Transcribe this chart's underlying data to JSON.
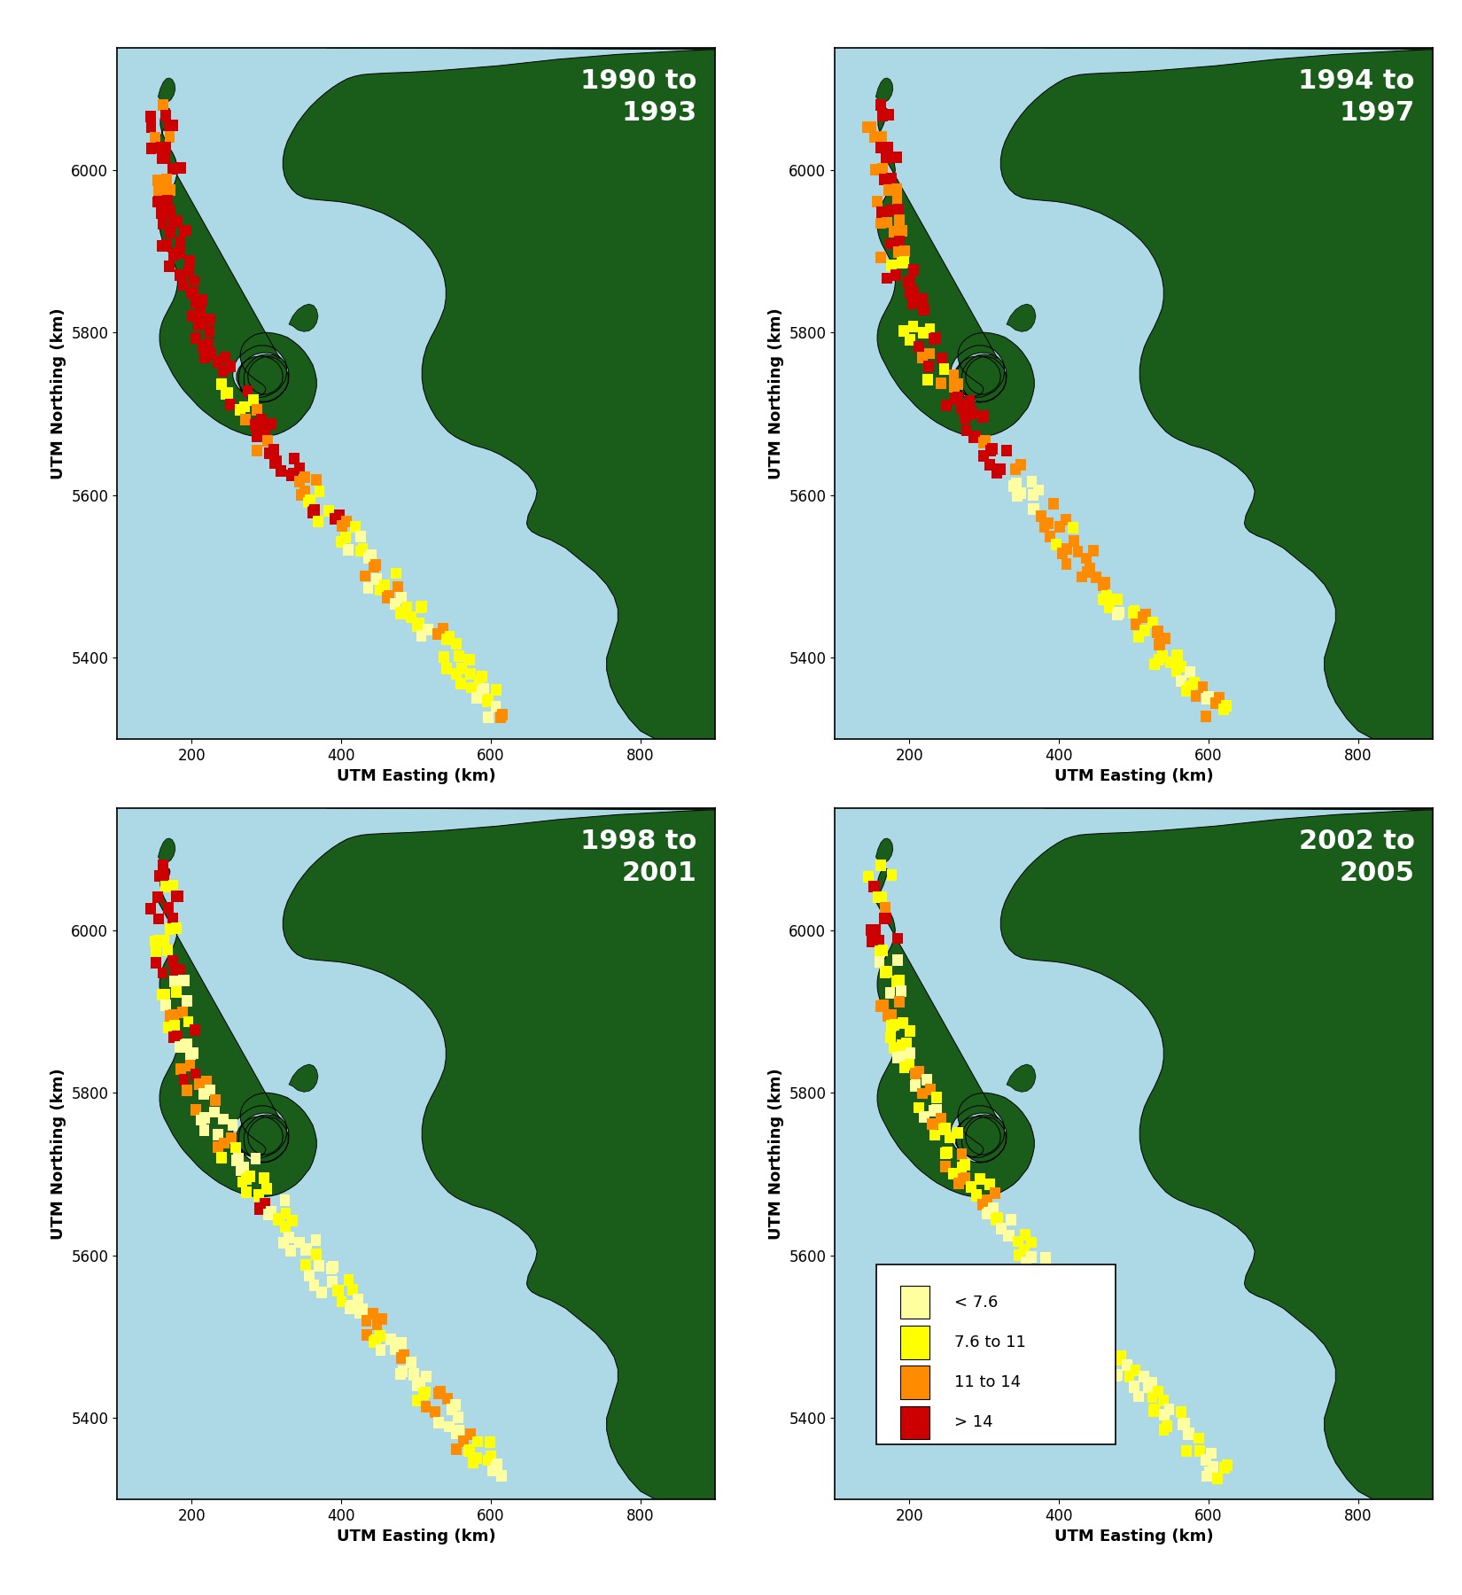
{
  "panels": [
    {
      "title": "1990 to\n1993",
      "period": "1990-1993"
    },
    {
      "title": "1994 to\n1997",
      "period": "1994-1997"
    },
    {
      "title": "1998 to\n2001",
      "period": "1998-2001"
    },
    {
      "title": "2002 to\n2005",
      "period": "2002-2005"
    }
  ],
  "xlim": [
    100,
    900
  ],
  "ylim": [
    5300,
    6150
  ],
  "xticks": [
    200,
    400,
    600,
    800
  ],
  "yticks": [
    5400,
    5600,
    5800,
    6000
  ],
  "xlabel": "UTM Easting (km)",
  "ylabel": "UTM Northing (km)",
  "ocean_color": "#ADD8E6",
  "land_color": "#1a5c1a",
  "land_border_color": "#000000",
  "title_color": "white",
  "title_fontsize": 22,
  "legend_labels": [
    "< 7.6",
    "7.6 to 11",
    "11 to 14",
    "> 14"
  ],
  "legend_colors": [
    "#FFFFA0",
    "#FFFF00",
    "#FF8C00",
    "#CC0000"
  ],
  "cpue_colors": {
    "very_low": "#FFFFA0",
    "low": "#FFFF00",
    "medium": "#FF8C00",
    "high": "#CC0000"
  },
  "mainland": [
    [
      380,
      6150
    ],
    [
      900,
      6150
    ],
    [
      900,
      5300
    ],
    [
      820,
      5300
    ],
    [
      800,
      5310
    ],
    [
      785,
      5325
    ],
    [
      770,
      5345
    ],
    [
      760,
      5365
    ],
    [
      755,
      5385
    ],
    [
      755,
      5400
    ],
    [
      760,
      5415
    ],
    [
      765,
      5430
    ],
    [
      770,
      5445
    ],
    [
      770,
      5460
    ],
    [
      765,
      5475
    ],
    [
      755,
      5490
    ],
    [
      740,
      5505
    ],
    [
      720,
      5520
    ],
    [
      700,
      5535
    ],
    [
      680,
      5545
    ],
    [
      665,
      5550
    ],
    [
      655,
      5555
    ],
    [
      650,
      5560
    ],
    [
      648,
      5565
    ],
    [
      650,
      5575
    ],
    [
      655,
      5585
    ],
    [
      660,
      5595
    ],
    [
      662,
      5605
    ],
    [
      658,
      5615
    ],
    [
      650,
      5625
    ],
    [
      638,
      5635
    ],
    [
      625,
      5643
    ],
    [
      612,
      5650
    ],
    [
      600,
      5655
    ],
    [
      590,
      5658
    ],
    [
      582,
      5660
    ],
    [
      575,
      5662
    ],
    [
      568,
      5665
    ],
    [
      560,
      5668
    ],
    [
      552,
      5672
    ],
    [
      543,
      5678
    ],
    [
      535,
      5686
    ],
    [
      527,
      5695
    ],
    [
      520,
      5706
    ],
    [
      514,
      5718
    ],
    [
      510,
      5730
    ],
    [
      508,
      5743
    ],
    [
      508,
      5756
    ],
    [
      510,
      5769
    ],
    [
      514,
      5782
    ],
    [
      520,
      5794
    ],
    [
      527,
      5806
    ],
    [
      533,
      5818
    ],
    [
      538,
      5830
    ],
    [
      540,
      5842
    ],
    [
      540,
      5854
    ],
    [
      538,
      5866
    ],
    [
      534,
      5878
    ],
    [
      528,
      5890
    ],
    [
      520,
      5902
    ],
    [
      510,
      5913
    ],
    [
      498,
      5923
    ],
    [
      485,
      5932
    ],
    [
      470,
      5940
    ],
    [
      455,
      5947
    ],
    [
      440,
      5952
    ],
    [
      425,
      5956
    ],
    [
      410,
      5959
    ],
    [
      396,
      5961
    ],
    [
      383,
      5962
    ],
    [
      371,
      5963
    ],
    [
      360,
      5964
    ],
    [
      350,
      5966
    ],
    [
      341,
      5970
    ],
    [
      334,
      5976
    ],
    [
      328,
      5984
    ],
    [
      324,
      5993
    ],
    [
      322,
      6003
    ],
    [
      322,
      6013
    ],
    [
      324,
      6024
    ],
    [
      328,
      6035
    ],
    [
      334,
      6046
    ],
    [
      341,
      6057
    ],
    [
      349,
      6067
    ],
    [
      358,
      6077
    ],
    [
      368,
      6086
    ],
    [
      378,
      6094
    ],
    [
      388,
      6101
    ],
    [
      398,
      6107
    ],
    [
      408,
      6112
    ],
    [
      418,
      6115
    ],
    [
      428,
      6117
    ],
    [
      440,
      6118
    ],
    [
      460,
      6119
    ],
    [
      490,
      6120
    ],
    [
      530,
      6122
    ],
    [
      570,
      6125
    ],
    [
      610,
      6128
    ],
    [
      650,
      6132
    ],
    [
      690,
      6136
    ],
    [
      730,
      6139
    ],
    [
      770,
      6142
    ],
    [
      810,
      6144
    ],
    [
      850,
      6146
    ],
    [
      900,
      6148
    ]
  ],
  "vancouver_island": [
    [
      155,
      6035
    ],
    [
      160,
      6045
    ],
    [
      165,
      6055
    ],
    [
      168,
      6063
    ],
    [
      170,
      6068
    ],
    [
      171,
      6072
    ],
    [
      170,
      6075
    ],
    [
      168,
      6076
    ],
    [
      165,
      6075
    ],
    [
      162,
      6072
    ],
    [
      160,
      6068
    ],
    [
      158,
      6062
    ],
    [
      158,
      6055
    ],
    [
      160,
      6047
    ],
    [
      163,
      6040
    ],
    [
      167,
      6033
    ],
    [
      171,
      6026
    ],
    [
      175,
      6020
    ],
    [
      178,
      6014
    ],
    [
      180,
      6007
    ],
    [
      181,
      6000
    ],
    [
      180,
      5993
    ],
    [
      178,
      5986
    ],
    [
      175,
      5979
    ],
    [
      171,
      5972
    ],
    [
      167,
      5965
    ],
    [
      163,
      5958
    ],
    [
      160,
      5951
    ],
    [
      158,
      5944
    ],
    [
      157,
      5937
    ],
    [
      157,
      5930
    ],
    [
      158,
      5923
    ],
    [
      160,
      5916
    ],
    [
      163,
      5909
    ],
    [
      167,
      5902
    ],
    [
      171,
      5895
    ],
    [
      175,
      5888
    ],
    [
      178,
      5881
    ],
    [
      180,
      5874
    ],
    [
      181,
      5867
    ],
    [
      181,
      5860
    ],
    [
      180,
      5853
    ],
    [
      178,
      5846
    ],
    [
      175,
      5839
    ],
    [
      171,
      5832
    ],
    [
      167,
      5825
    ],
    [
      163,
      5818
    ],
    [
      160,
      5811
    ],
    [
      158,
      5804
    ],
    [
      157,
      5797
    ],
    [
      157,
      5790
    ],
    [
      158,
      5783
    ],
    [
      160,
      5776
    ],
    [
      163,
      5769
    ],
    [
      167,
      5762
    ],
    [
      171,
      5755
    ],
    [
      175,
      5748
    ],
    [
      180,
      5741
    ],
    [
      185,
      5734
    ],
    [
      190,
      5728
    ],
    [
      196,
      5722
    ],
    [
      202,
      5716
    ],
    [
      208,
      5710
    ],
    [
      215,
      5704
    ],
    [
      222,
      5699
    ],
    [
      229,
      5694
    ],
    [
      237,
      5689
    ],
    [
      245,
      5685
    ],
    [
      253,
      5681
    ],
    [
      261,
      5678
    ],
    [
      270,
      5675
    ],
    [
      279,
      5673
    ],
    [
      288,
      5672
    ],
    [
      297,
      5672
    ],
    [
      306,
      5673
    ],
    [
      315,
      5675
    ],
    [
      323,
      5678
    ],
    [
      331,
      5682
    ],
    [
      339,
      5687
    ],
    [
      346,
      5693
    ],
    [
      352,
      5700
    ],
    [
      358,
      5707
    ],
    [
      362,
      5715
    ],
    [
      365,
      5724
    ],
    [
      367,
      5733
    ],
    [
      367,
      5742
    ],
    [
      365,
      5751
    ],
    [
      362,
      5760
    ],
    [
      357,
      5768
    ],
    [
      351,
      5776
    ],
    [
      344,
      5783
    ],
    [
      336,
      5789
    ],
    [
      328,
      5794
    ],
    [
      319,
      5797
    ],
    [
      310,
      5799
    ],
    [
      301,
      5800
    ],
    [
      292,
      5799
    ],
    [
      284,
      5797
    ],
    [
      277,
      5793
    ],
    [
      271,
      5788
    ],
    [
      267,
      5782
    ],
    [
      265,
      5775
    ],
    [
      265,
      5768
    ],
    [
      267,
      5761
    ],
    [
      271,
      5754
    ],
    [
      277,
      5748
    ],
    [
      284,
      5743
    ],
    [
      290,
      5739
    ],
    [
      295,
      5736
    ],
    [
      298,
      5733
    ],
    [
      299,
      5730
    ],
    [
      298,
      5727
    ],
    [
      295,
      5724
    ],
    [
      290,
      5722
    ],
    [
      284,
      5721
    ],
    [
      278,
      5722
    ],
    [
      272,
      5724
    ],
    [
      266,
      5728
    ],
    [
      261,
      5733
    ],
    [
      257,
      5739
    ],
    [
      255,
      5746
    ],
    [
      255,
      5753
    ],
    [
      257,
      5760
    ],
    [
      261,
      5767
    ],
    [
      267,
      5773
    ],
    [
      274,
      5778
    ],
    [
      282,
      5782
    ],
    [
      290,
      5784
    ],
    [
      299,
      5784
    ],
    [
      307,
      5782
    ],
    [
      314,
      5778
    ],
    [
      320,
      5772
    ],
    [
      325,
      5765
    ],
    [
      327,
      5757
    ],
    [
      327,
      5749
    ],
    [
      325,
      5741
    ],
    [
      320,
      5734
    ],
    [
      314,
      5728
    ],
    [
      306,
      5724
    ],
    [
      298,
      5721
    ],
    [
      290,
      5720
    ],
    [
      282,
      5721
    ],
    [
      275,
      5724
    ],
    [
      268,
      5729
    ],
    [
      263,
      5735
    ],
    [
      260,
      5742
    ],
    [
      260,
      5749
    ],
    [
      263,
      5756
    ],
    [
      268,
      5762
    ],
    [
      275,
      5767
    ],
    [
      283,
      5770
    ],
    [
      292,
      5771
    ],
    [
      300,
      5770
    ],
    [
      308,
      5767
    ],
    [
      315,
      5762
    ],
    [
      320,
      5755
    ],
    [
      322,
      5747
    ],
    [
      321,
      5739
    ],
    [
      316,
      5732
    ],
    [
      309,
      5727
    ],
    [
      301,
      5724
    ],
    [
      293,
      5724
    ],
    [
      286,
      5727
    ],
    [
      280,
      5732
    ],
    [
      276,
      5739
    ],
    [
      275,
      5747
    ],
    [
      277,
      5755
    ],
    [
      282,
      5762
    ],
    [
      289,
      5767
    ],
    [
      297,
      5770
    ],
    [
      305,
      5770
    ],
    [
      313,
      5768
    ],
    [
      320,
      5763
    ],
    [
      326,
      5756
    ],
    [
      329,
      5748
    ],
    [
      329,
      5739
    ],
    [
      326,
      5731
    ],
    [
      320,
      5724
    ],
    [
      312,
      5718
    ],
    [
      303,
      5715
    ],
    [
      294,
      5714
    ],
    [
      285,
      5715
    ],
    [
      277,
      5718
    ],
    [
      270,
      5724
    ],
    [
      265,
      5731
    ],
    [
      263,
      5739
    ],
    [
      263,
      5748
    ],
    [
      265,
      5756
    ],
    [
      270,
      5763
    ],
    [
      277,
      5769
    ],
    [
      285,
      5773
    ],
    [
      294,
      5775
    ],
    [
      303,
      5775
    ],
    [
      311,
      5773
    ],
    [
      319,
      5769
    ],
    [
      325,
      5763
    ],
    [
      329,
      5755
    ],
    [
      330,
      5747
    ],
    [
      329,
      5738
    ],
    [
      325,
      5730
    ],
    [
      318,
      5723
    ],
    [
      310,
      5718
    ],
    [
      301,
      5715
    ],
    [
      292,
      5715
    ],
    [
      284,
      5718
    ],
    [
      277,
      5723
    ],
    [
      272,
      5730
    ],
    [
      270,
      5738
    ],
    [
      270,
      5747
    ],
    [
      272,
      5755
    ],
    [
      277,
      5762
    ],
    [
      284,
      5768
    ],
    [
      292,
      5772
    ],
    [
      301,
      5773
    ],
    [
      310,
      5772
    ],
    [
      318,
      5768
    ],
    [
      155,
      6035
    ]
  ],
  "small_island": [
    [
      155,
      6090
    ],
    [
      158,
      6100
    ],
    [
      162,
      6108
    ],
    [
      166,
      6112
    ],
    [
      170,
      6113
    ],
    [
      174,
      6111
    ],
    [
      177,
      6106
    ],
    [
      178,
      6099
    ],
    [
      176,
      6092
    ],
    [
      172,
      6086
    ],
    [
      167,
      6083
    ],
    [
      162,
      6083
    ],
    [
      158,
      6086
    ],
    [
      155,
      6090
    ]
  ],
  "mainland_inlet_islands": [
    [
      330,
      5810
    ],
    [
      335,
      5820
    ],
    [
      342,
      5828
    ],
    [
      350,
      5833
    ],
    [
      357,
      5835
    ],
    [
      363,
      5833
    ],
    [
      367,
      5828
    ],
    [
      369,
      5820
    ],
    [
      367,
      5812
    ],
    [
      363,
      5806
    ],
    [
      357,
      5802
    ],
    [
      350,
      5801
    ],
    [
      342,
      5803
    ],
    [
      335,
      5808
    ],
    [
      330,
      5810
    ]
  ],
  "shelf_track": [
    [
      162,
      6080
    ],
    [
      163,
      6060
    ],
    [
      164,
      6040
    ],
    [
      165,
      6020
    ],
    [
      166,
      6000
    ],
    [
      168,
      5980
    ],
    [
      170,
      5960
    ],
    [
      173,
      5940
    ],
    [
      176,
      5920
    ],
    [
      180,
      5900
    ],
    [
      185,
      5880
    ],
    [
      191,
      5860
    ],
    [
      198,
      5840
    ],
    [
      206,
      5820
    ],
    [
      215,
      5800
    ],
    [
      225,
      5780
    ],
    [
      236,
      5760
    ],
    [
      248,
      5740
    ],
    [
      261,
      5720
    ],
    [
      275,
      5700
    ],
    [
      290,
      5680
    ],
    [
      306,
      5660
    ],
    [
      322,
      5640
    ],
    [
      339,
      5620
    ],
    [
      357,
      5600
    ],
    [
      375,
      5580
    ],
    [
      393,
      5560
    ],
    [
      412,
      5540
    ],
    [
      431,
      5520
    ],
    [
      450,
      5500
    ],
    [
      469,
      5480
    ],
    [
      488,
      5460
    ],
    [
      507,
      5440
    ],
    [
      526,
      5420
    ],
    [
      545,
      5400
    ],
    [
      564,
      5380
    ],
    [
      583,
      5360
    ],
    [
      600,
      5345
    ],
    [
      617,
      5332
    ]
  ]
}
